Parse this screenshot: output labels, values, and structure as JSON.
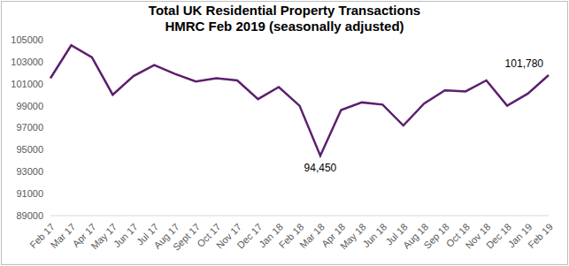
{
  "chart_data": {
    "type": "line",
    "title": "Total UK Residential Property Transactions",
    "subtitle": "HMRC Feb 2019 (seasonally adjusted)",
    "categories": [
      "Feb 17",
      "Mar 17",
      "Apr 17",
      "May 17",
      "Jun 17",
      "Jul 17",
      "Aug 17",
      "Sept 17",
      "Oct 17",
      "Nov 17",
      "Dec 17",
      "Jan 18",
      "Feb 18",
      "Mar 18",
      "Apr 18",
      "May 18",
      "Jun 18",
      "Jul 18",
      "Aug 18",
      "Sep 18",
      "Oct 18",
      "Nov 18",
      "Dec 18",
      "Jan 19",
      "Feb 19"
    ],
    "values": [
      101500,
      104500,
      103400,
      100000,
      101700,
      102700,
      101900,
      101200,
      101500,
      101300,
      99600,
      100700,
      99000,
      94450,
      98600,
      99300,
      99100,
      97200,
      99200,
      100400,
      100300,
      101300,
      99000,
      100100,
      101780
    ],
    "color": "#5c1f6e",
    "ylim": [
      89000,
      105000
    ],
    "yticks": [
      89000,
      91000,
      93000,
      95000,
      97000,
      99000,
      101000,
      103000,
      105000
    ],
    "grid": false,
    "annotations": [
      {
        "x": "Mar 18",
        "value": 94450,
        "text": "94,450"
      },
      {
        "x": "Feb 19",
        "value": 101780,
        "text": "101,780"
      }
    ]
  }
}
